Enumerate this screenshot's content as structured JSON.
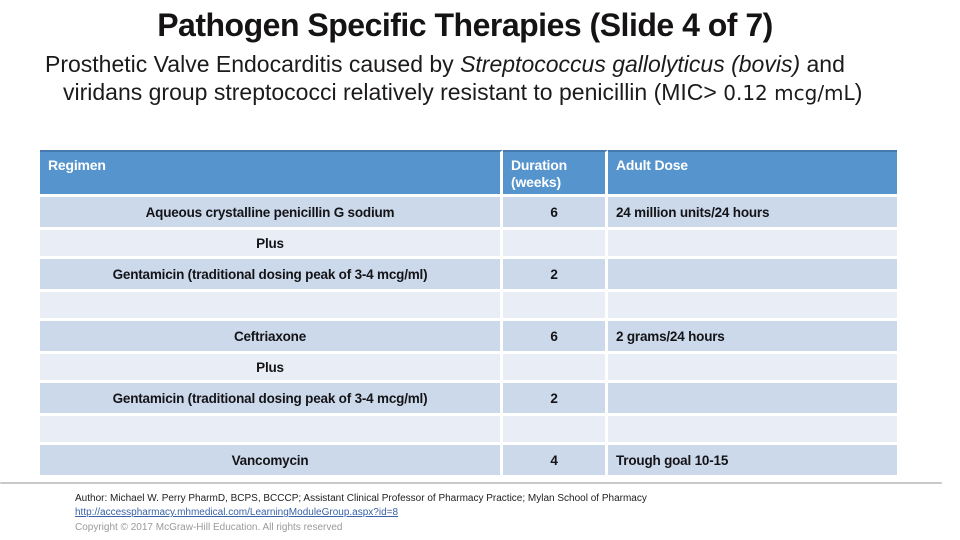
{
  "slide": {
    "title": "Pathogen Specific Therapies (Slide 4 of 7)",
    "subtitle": {
      "seg_normal_1": "Prosthetic Valve Endocarditis caused by ",
      "seg_italic": "Streptococcus gallolyticus (bovis)",
      "seg_normal_2": "  and viridans group streptococci relatively resistant to penicillin (MIC> ",
      "seg_alt_font": "0.12 mcg/mL",
      "seg_close": ")"
    }
  },
  "table": {
    "headers": [
      "Regimen",
      "Duration (weeks)",
      "Adult Dose"
    ],
    "rows": [
      {
        "regimen": "Aqueous crystalline penicillin G sodium",
        "duration": "6",
        "dose": "24 million units/24 hours"
      },
      {
        "regimen": "Plus",
        "duration": "",
        "dose": ""
      },
      {
        "regimen": "Gentamicin (traditional dosing peak of 3-4 mcg/ml)",
        "duration": "2",
        "dose": ""
      },
      {
        "regimen": "",
        "duration": "",
        "dose": ""
      },
      {
        "regimen": "Ceftriaxone",
        "duration": "6",
        "dose": "2 grams/24 hours"
      },
      {
        "regimen": "Plus",
        "duration": "",
        "dose": ""
      },
      {
        "regimen": "Gentamicin (traditional dosing peak of 3-4 mcg/ml)",
        "duration": "2",
        "dose": ""
      },
      {
        "regimen": "",
        "duration": "",
        "dose": ""
      },
      {
        "regimen": "Vancomycin",
        "duration": "4",
        "dose": "Trough goal 10-15"
      }
    ]
  },
  "footer": {
    "author": "Author: Michael W. Perry PharmD, BCPS, BCCCP; Assistant Clinical Professor of Pharmacy Practice; Mylan School of Pharmacy",
    "link": "http://accesspharmacy.mhmedical.com/LearningModuleGroup.aspx?id=8",
    "copyright": "Copyright © 2017 McGraw-Hill Education. All rights reserved"
  },
  "colors": {
    "table_header_bg": "#5694ce",
    "table_band_light_blue": "#ccd9ea",
    "table_band_pale": "#e9eef6",
    "link_blue": "#3a62a7",
    "divider_gray": "#c9c9c9"
  }
}
